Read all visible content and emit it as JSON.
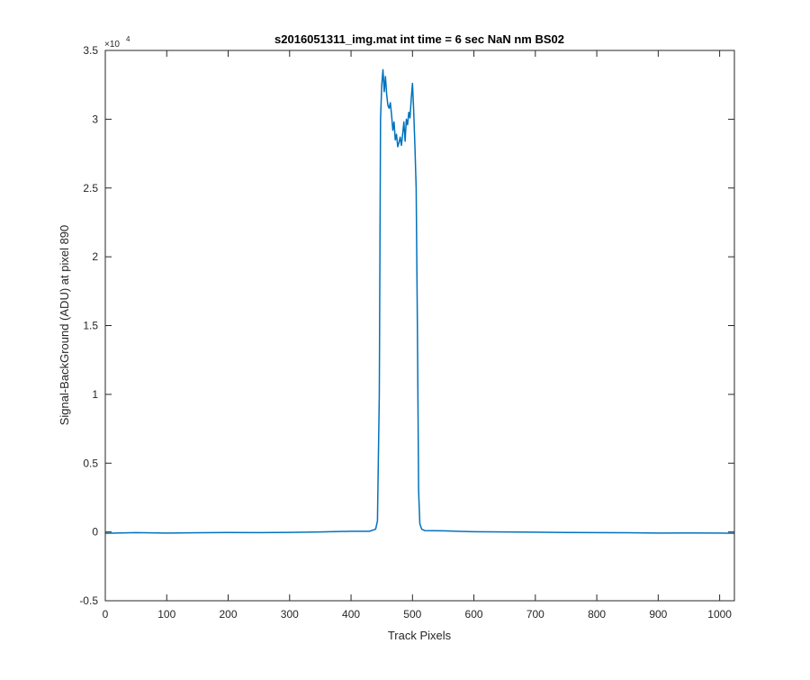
{
  "chart_data": {
    "type": "line",
    "title": "s2016051311_img.mat int time = 6 sec  NaN nm BS02",
    "xlabel": "Track Pixels",
    "ylabel": "Signal-BackGround (ADU) at pixel 890",
    "xlim": [
      0,
      1024
    ],
    "ylim": [
      -5000,
      35000
    ],
    "exponent_label": "×10",
    "exponent_power": "4",
    "grid": false,
    "legend": "none",
    "x_ticks": [
      0,
      100,
      200,
      300,
      400,
      500,
      600,
      700,
      800,
      900,
      1000
    ],
    "x_tick_labels": [
      "0",
      "100",
      "200",
      "300",
      "400",
      "500",
      "600",
      "700",
      "800",
      "900",
      "1000"
    ],
    "y_ticks": [
      -5000,
      0,
      5000,
      10000,
      15000,
      20000,
      25000,
      30000,
      35000
    ],
    "y_tick_labels": [
      "-0.5",
      "0",
      "0.5",
      "1",
      "1.5",
      "2",
      "2.5",
      "3",
      "3.5"
    ],
    "line_color": "#0072bd",
    "series": [
      {
        "x": [
          0,
          50,
          100,
          150,
          200,
          250,
          300,
          350,
          400,
          430,
          440,
          443,
          446,
          448,
          450,
          452,
          454,
          456,
          458,
          460,
          462,
          464,
          466,
          468,
          470,
          472,
          474,
          476,
          478,
          480,
          482,
          484,
          486,
          488,
          490,
          492,
          494,
          496,
          498,
          500,
          502,
          504,
          506,
          508,
          510,
          512,
          515,
          520,
          550,
          600,
          650,
          700,
          750,
          800,
          850,
          900,
          950,
          1000,
          1024
        ],
        "y": [
          -100,
          -50,
          -80,
          -60,
          -40,
          -50,
          -30,
          0,
          50,
          50,
          200,
          800,
          10000,
          30000,
          32500,
          33600,
          32000,
          33100,
          31800,
          31000,
          30800,
          31200,
          30300,
          29200,
          29800,
          28500,
          28900,
          28000,
          28300,
          28700,
          28100,
          28900,
          29800,
          28400,
          30000,
          29600,
          30500,
          30100,
          31500,
          32600,
          30600,
          28000,
          25000,
          15000,
          3000,
          600,
          200,
          100,
          80,
          20,
          0,
          -20,
          -40,
          -50,
          -60,
          -80,
          -70,
          -80,
          -100
        ]
      }
    ]
  }
}
